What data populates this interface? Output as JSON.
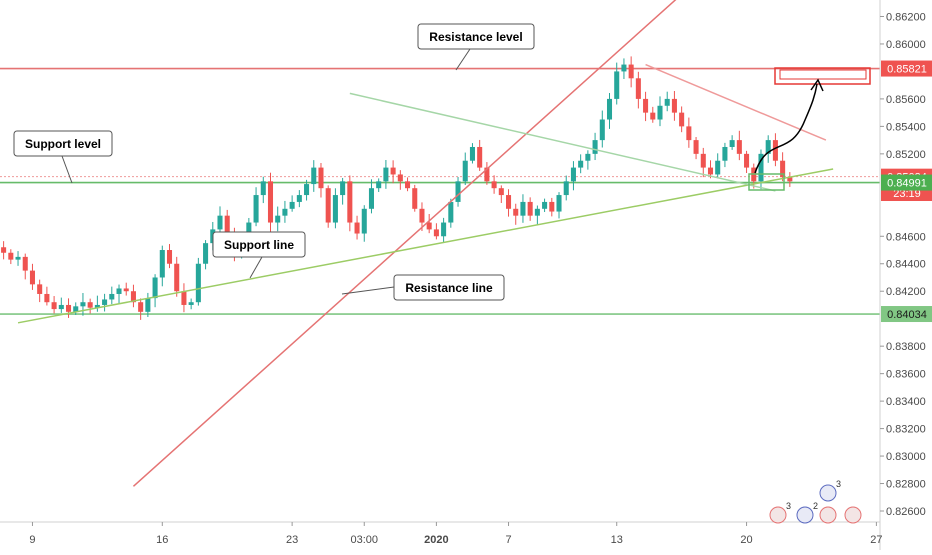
{
  "chart_data": {
    "type": "candlestick",
    "ylim": [
      0.8252,
      0.8632
    ],
    "y_ticks": [
      "0.86200",
      "0.86000",
      "0.85600",
      "0.85400",
      "0.85200",
      "0.84600",
      "0.84400",
      "0.84200",
      "0.83800",
      "0.83600",
      "0.83400",
      "0.83200",
      "0.83000",
      "0.82800",
      "0.82600"
    ],
    "y_tick_values": [
      0.862,
      0.86,
      0.856,
      0.854,
      0.852,
      0.846,
      0.844,
      0.842,
      0.838,
      0.836,
      0.834,
      0.832,
      0.83,
      0.828,
      0.826
    ],
    "x_ticks": [
      "9",
      "16",
      "23",
      "03:00",
      "2020",
      "7",
      "13",
      "20",
      "27"
    ],
    "x_tick_bars": [
      4,
      22,
      40,
      50,
      60,
      70,
      85,
      103,
      121
    ],
    "total_bars": 122,
    "price_tags": [
      {
        "label": "0.85821",
        "value": 0.85821,
        "color": "#ef5350"
      },
      {
        "label": "0.85034",
        "value": 0.85034,
        "color": "#ef5350"
      },
      {
        "label": "23:19",
        "value": 0.84915,
        "color": "#ef5350"
      },
      {
        "label": "0.84991",
        "value": 0.84991,
        "color": "#4caf50"
      },
      {
        "label": "0.84034",
        "value": 0.84034,
        "color": "#81c784"
      }
    ],
    "horizontal_lines": [
      {
        "value": 0.85821,
        "color": "#e57373"
      },
      {
        "value": 0.84991,
        "color": "#66bb6a"
      },
      {
        "value": 0.84034,
        "color": "#81c784"
      },
      {
        "value": 0.85034,
        "color": "#ef9a9a",
        "dotted": true
      }
    ],
    "trend_lines": [
      {
        "name": "resistance-line",
        "from": [
          18,
          0.8278
        ],
        "to": [
          98,
          0.8655
        ],
        "color": "#e57373"
      },
      {
        "name": "support-line",
        "from": [
          2,
          0.8397
        ],
        "to": [
          115,
          0.8509
        ],
        "color": "#9ccc65"
      },
      {
        "name": "upper-channel",
        "from": [
          48,
          0.8564
        ],
        "to": [
          107,
          0.8493
        ],
        "color": "#a5d6a7"
      },
      {
        "name": "falling-line",
        "from": [
          89,
          0.8585
        ],
        "to": [
          114,
          0.853
        ],
        "color": "#ef9a9a"
      }
    ],
    "annotations": [
      {
        "id": "resistance-level",
        "text": "Resistance level"
      },
      {
        "id": "support-level",
        "text": "Support level"
      },
      {
        "id": "support-line",
        "text": "Support line"
      },
      {
        "id": "resistance-line",
        "text": "Resistance line"
      }
    ],
    "series": [
      {
        "closes": [
          0.8448,
          0.8443,
          0.8445,
          0.8435,
          0.8425,
          0.8418,
          0.8412,
          0.8407,
          0.841,
          0.8405,
          0.8409,
          0.8412,
          0.8408,
          0.841,
          0.8414,
          0.8418,
          0.8422,
          0.842,
          0.8412,
          0.8405,
          0.8415,
          0.843,
          0.845,
          0.844,
          0.842,
          0.841,
          0.8412,
          0.844,
          0.8455,
          0.8465,
          0.8475,
          0.8462,
          0.8448,
          0.8455,
          0.847,
          0.849,
          0.85,
          0.847,
          0.8475,
          0.848,
          0.8485,
          0.849,
          0.8498,
          0.851,
          0.8495,
          0.847,
          0.849,
          0.85,
          0.847,
          0.8462,
          0.848,
          0.8495,
          0.85,
          0.851,
          0.8505,
          0.85,
          0.8495,
          0.848,
          0.847,
          0.8465,
          0.846,
          0.847,
          0.8485,
          0.85,
          0.8515,
          0.8525,
          0.851,
          0.85,
          0.8495,
          0.849,
          0.848,
          0.8475,
          0.8485,
          0.8475,
          0.848,
          0.8485,
          0.8478,
          0.849,
          0.85,
          0.851,
          0.8515,
          0.852,
          0.853,
          0.8545,
          0.856,
          0.858,
          0.8585,
          0.8575,
          0.856,
          0.855,
          0.8545,
          0.8555,
          0.856,
          0.855,
          0.854,
          0.853,
          0.852,
          0.851,
          0.8505,
          0.8515,
          0.8525,
          0.853,
          0.852,
          0.851,
          0.85,
          0.852,
          0.853,
          0.8515,
          0.8503,
          0.85
        ]
      }
    ]
  },
  "watermark_flags": {
    "badge1": "3",
    "badge2": "2",
    "badge3": "3"
  }
}
